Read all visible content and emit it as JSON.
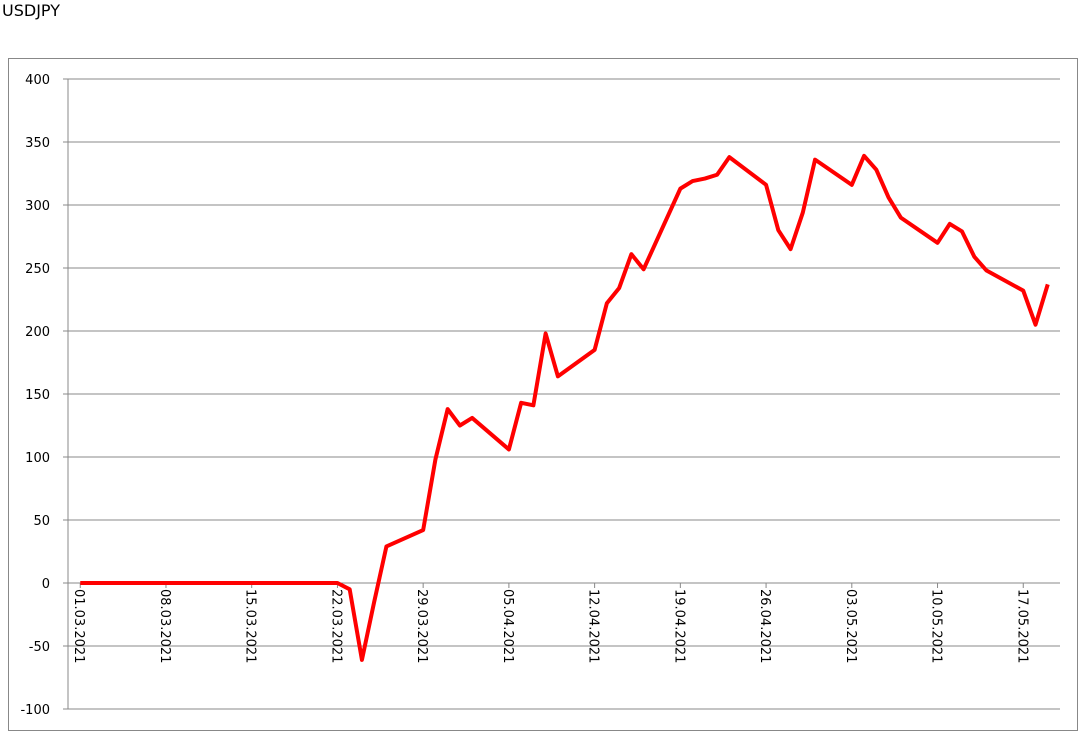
{
  "chart_data": {
    "type": "line",
    "title": "USDJPY",
    "color": "#ff0000",
    "x": [
      "01.03.2021",
      "02.03.2021",
      "03.03.2021",
      "04.03.2021",
      "05.03.2021",
      "08.03.2021",
      "09.03.2021",
      "10.03.2021",
      "11.03.2021",
      "12.03.2021",
      "15.03.2021",
      "16.03.2021",
      "17.03.2021",
      "18.03.2021",
      "19.03.2021",
      "22.03.2021",
      "23.03.2021",
      "24.03.2021",
      "25.03.2021",
      "26.03.2021",
      "29.03.2021",
      "30.03.2021",
      "31.03.2021",
      "01.04.2021",
      "02.04.2021",
      "05.04.2021",
      "06.04.2021",
      "07.04.2021",
      "08.04.2021",
      "09.04.2021",
      "12.04.2021",
      "13.04.2021",
      "14.04.2021",
      "15.04.2021",
      "16.04.2021",
      "19.04.2021",
      "20.04.2021",
      "21.04.2021",
      "22.04.2021",
      "23.04.2021",
      "26.04.2021",
      "27.04.2021",
      "28.04.2021",
      "29.04.2021",
      "30.04.2021",
      "03.05.2021",
      "04.05.2021",
      "05.05.2021",
      "06.05.2021",
      "07.05.2021",
      "10.05.2021",
      "11.05.2021",
      "12.05.2021",
      "13.05.2021",
      "14.05.2021",
      "17.05.2021",
      "18.05.2021",
      "19.05.2021"
    ],
    "values": [
      0,
      0,
      0,
      0,
      0,
      0,
      0,
      0,
      0,
      0,
      0,
      0,
      0,
      0,
      0,
      0,
      -5,
      -61,
      -15,
      29,
      42,
      98,
      138,
      125,
      131,
      106,
      143,
      141,
      198,
      164,
      185,
      222,
      234,
      261,
      249,
      313,
      319,
      321,
      324,
      338,
      316,
      280,
      265,
      294,
      336,
      316,
      339,
      328,
      306,
      290,
      270,
      285,
      279,
      259,
      248,
      232,
      205,
      237
    ],
    "xlim": [
      "28.02.2021",
      "20.05.2021"
    ],
    "xticks": [
      "01.03.2021",
      "08.03.2021",
      "15.03.2021",
      "22.03.2021",
      "29.03.2021",
      "05.04.2021",
      "12.04.2021",
      "19.04.2021",
      "26.04.2021",
      "03.05.2021",
      "10.05.2021",
      "17.05.2021"
    ],
    "ylim": [
      -100,
      400
    ],
    "yticks": [
      -100,
      -50,
      0,
      50,
      100,
      150,
      200,
      250,
      300,
      350,
      400
    ],
    "grid": true
  }
}
